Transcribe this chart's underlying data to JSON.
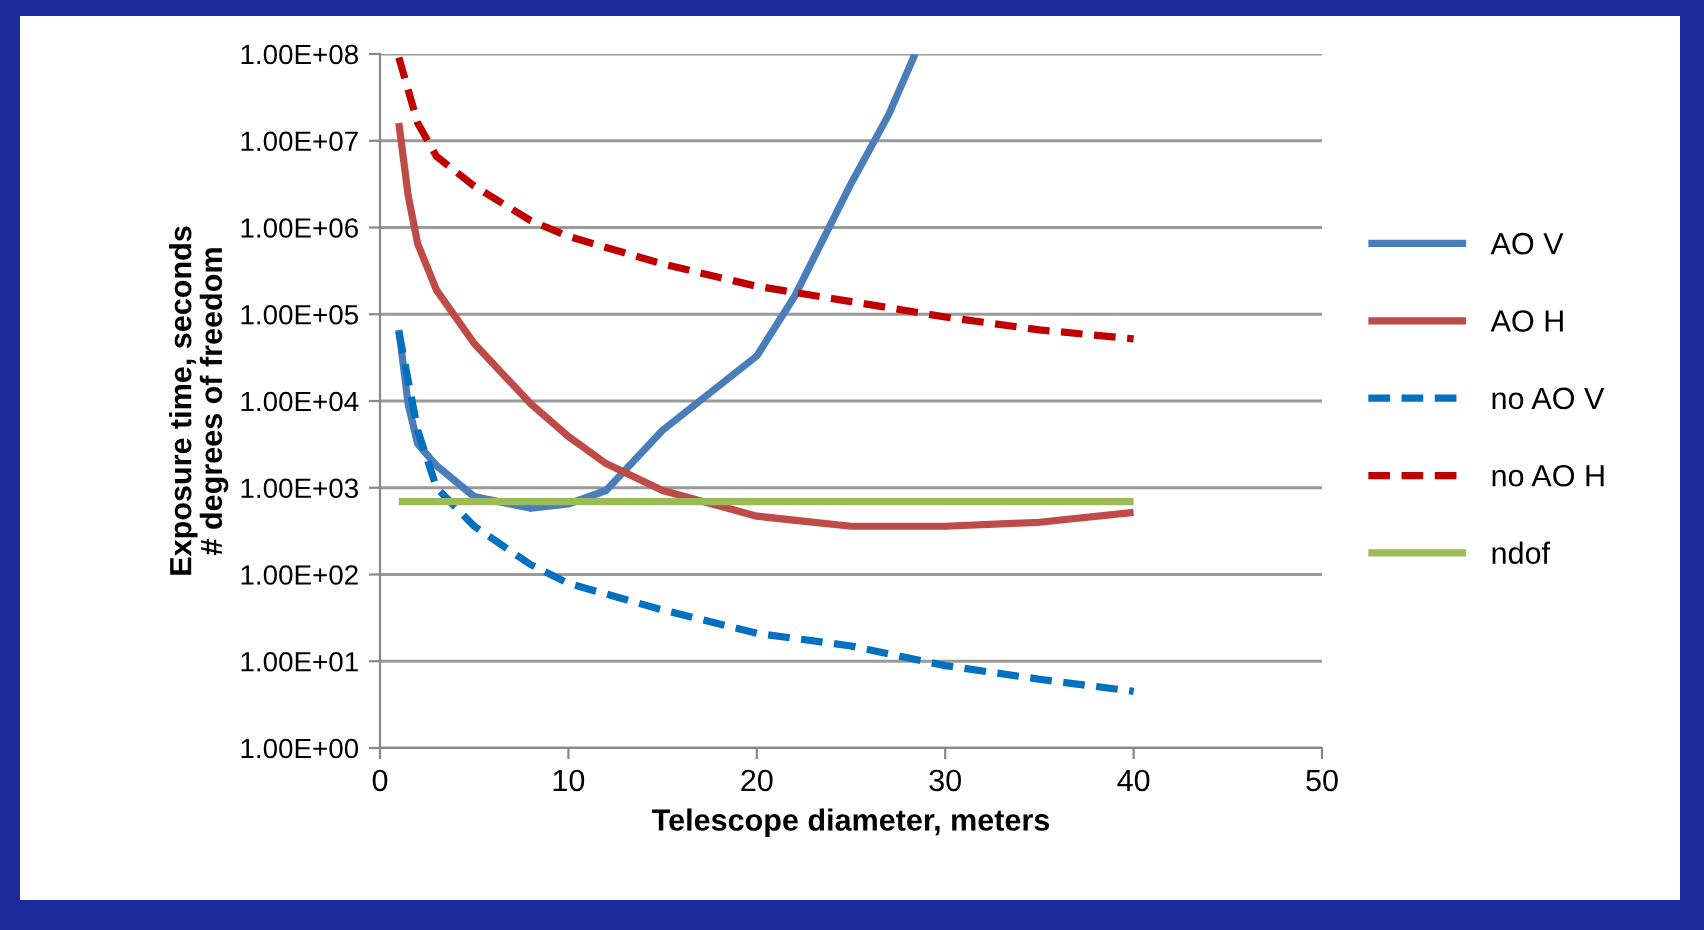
{
  "chart_data": {
    "type": "line",
    "xlabel": "Telescope diameter, meters",
    "ylabel": "Exposure time, seconds\n# degrees of freedom",
    "log": "y",
    "grid": "y",
    "legend": "right",
    "marker": "none",
    "xlim": [
      0,
      50
    ],
    "xticks": [
      0,
      10,
      20,
      30,
      40,
      50
    ],
    "ylim": [
      1,
      100000000
    ],
    "yticks": [
      {
        "value": 1,
        "label": "1.00E+00"
      },
      {
        "value": 10,
        "label": "1.00E+01"
      },
      {
        "value": 100,
        "label": "1.00E+02"
      },
      {
        "value": 1000,
        "label": "1.00E+03"
      },
      {
        "value": 10000,
        "label": "1.00E+04"
      },
      {
        "value": 100000,
        "label": "1.00E+05"
      },
      {
        "value": 1000000,
        "label": "1.00E+06"
      },
      {
        "value": 10000000,
        "label": "1.00E+07"
      },
      {
        "value": 100000000,
        "label": "1.00E+08"
      }
    ],
    "series": [
      {
        "name": "AO V",
        "color": "#4a7ebb",
        "line_style": "solid",
        "x": [
          1,
          1.5,
          2,
          3,
          5,
          8,
          10,
          12,
          15,
          20,
          22,
          25,
          27,
          28.4
        ],
        "values": [
          66000,
          9100,
          3200,
          1800,
          790,
          580,
          650,
          930,
          4600,
          33000,
          160000,
          3200000,
          20000000,
          100000000
        ]
      },
      {
        "name": "AO H",
        "color": "#be4b48",
        "line_style": "solid",
        "x": [
          1,
          1.5,
          2,
          3,
          5,
          8,
          10,
          12,
          15,
          20,
          25,
          30,
          35,
          40
        ],
        "values": [
          16000000,
          2300000,
          650000,
          190000,
          46000,
          9300,
          3900,
          1900,
          930,
          470,
          360,
          360,
          400,
          520
        ]
      },
      {
        "name": "no AO V",
        "color": "#0070c0",
        "line_style": "dashed",
        "x": [
          1,
          2,
          3,
          5,
          8,
          10,
          15,
          20,
          25,
          30,
          35,
          40
        ],
        "values": [
          63000,
          4600,
          1000,
          360,
          130,
          79,
          39,
          21,
          15,
          8.9,
          6.2,
          4.5
        ]
      },
      {
        "name": "no AO H",
        "color": "#c00000",
        "line_style": "dashed",
        "x": [
          1,
          2,
          3,
          5,
          8,
          10,
          15,
          20,
          25,
          30,
          35,
          40
        ],
        "values": [
          91000000,
          16000000,
          6600000,
          3000000,
          1200000,
          790000,
          380000,
          210000,
          140000,
          93000,
          66000,
          52000
        ]
      },
      {
        "name": "ndof",
        "color": "#9bbb59",
        "line_style": "solid",
        "x": [
          1,
          40
        ],
        "values": [
          690,
          690
        ]
      }
    ]
  }
}
